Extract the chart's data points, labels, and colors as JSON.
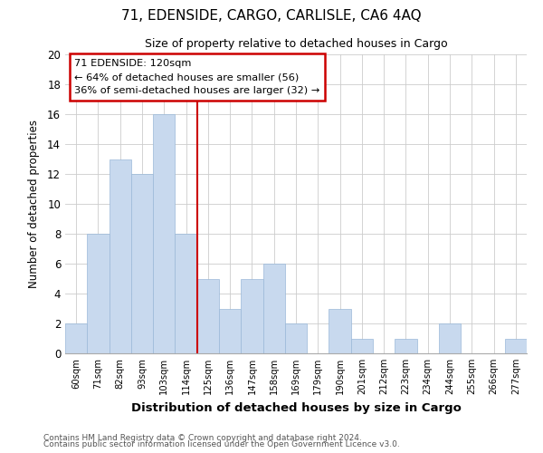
{
  "title": "71, EDENSIDE, CARGO, CARLISLE, CA6 4AQ",
  "subtitle": "Size of property relative to detached houses in Cargo",
  "xlabel": "Distribution of detached houses by size in Cargo",
  "ylabel": "Number of detached properties",
  "bar_color": "#c8d9ee",
  "bar_edge_color": "#9ab8d8",
  "marker_line_color": "#cc0000",
  "categories": [
    "60sqm",
    "71sqm",
    "82sqm",
    "93sqm",
    "103sqm",
    "114sqm",
    "125sqm",
    "136sqm",
    "147sqm",
    "158sqm",
    "169sqm",
    "179sqm",
    "190sqm",
    "201sqm",
    "212sqm",
    "223sqm",
    "234sqm",
    "244sqm",
    "255sqm",
    "266sqm",
    "277sqm"
  ],
  "values": [
    2,
    8,
    13,
    12,
    16,
    8,
    5,
    3,
    5,
    6,
    2,
    0,
    3,
    1,
    0,
    1,
    0,
    2,
    0,
    0,
    1
  ],
  "ylim": [
    0,
    20
  ],
  "yticks": [
    0,
    2,
    4,
    6,
    8,
    10,
    12,
    14,
    16,
    18,
    20
  ],
  "annotation_title": "71 EDENSIDE: 120sqm",
  "annotation_line1": "← 64% of detached houses are smaller (56)",
  "annotation_line2": "36% of semi-detached houses are larger (32) →",
  "annotation_box_color": "#ffffff",
  "annotation_box_edge": "#cc0000",
  "footer1": "Contains HM Land Registry data © Crown copyright and database right 2024.",
  "footer2": "Contains public sector information licensed under the Open Government Licence v3.0.",
  "grid_color": "#cccccc",
  "background_color": "#ffffff",
  "marker_bar_index": 5
}
